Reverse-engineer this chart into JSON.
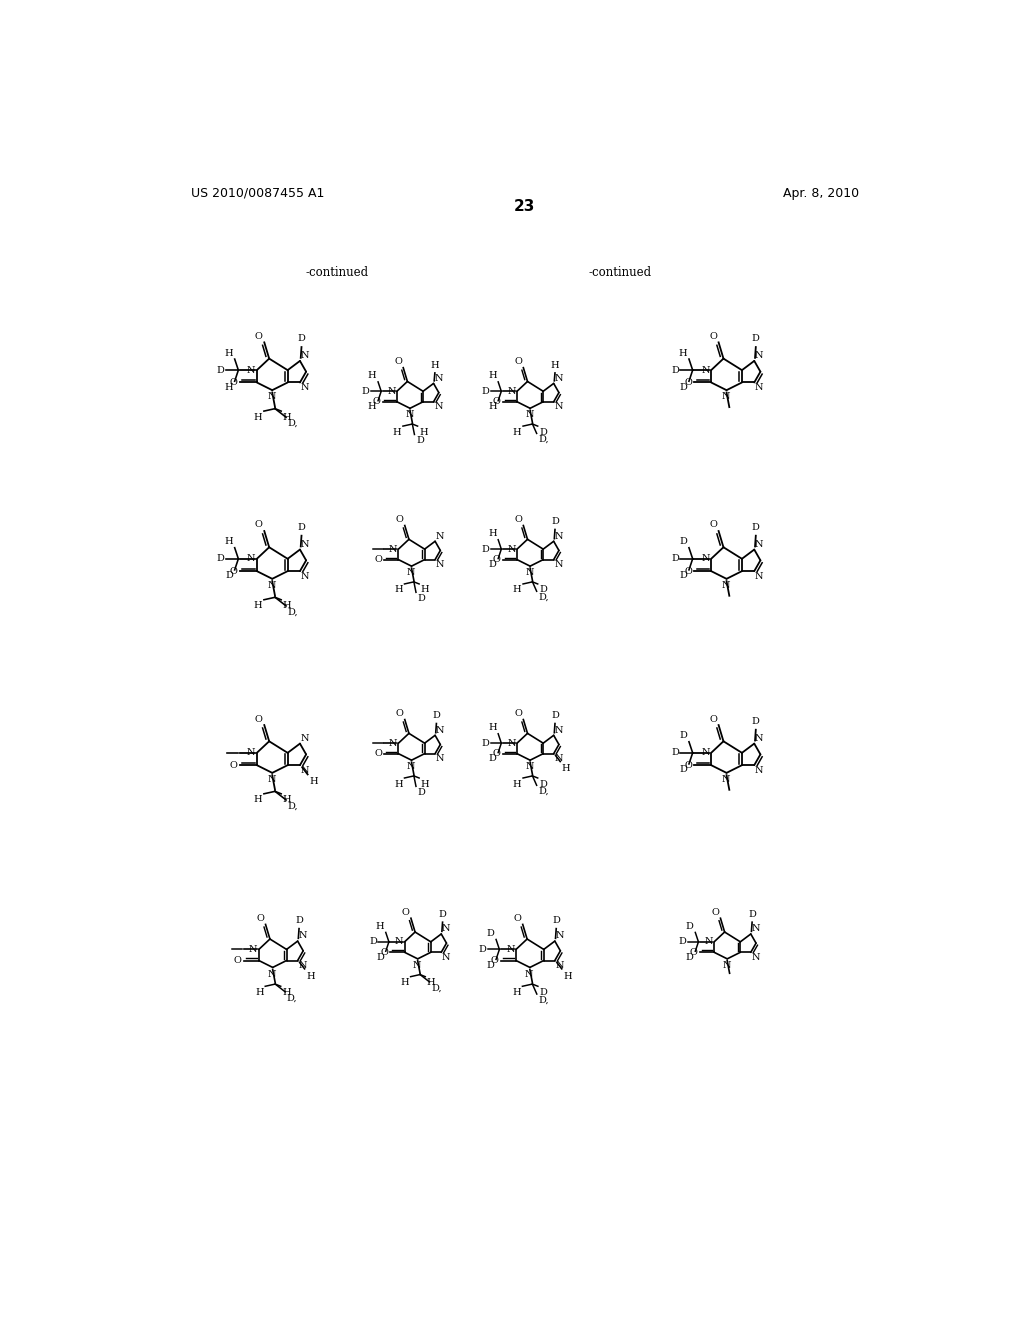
{
  "page_number": "23",
  "patent_number": "US 2010/0087455 A1",
  "patent_date": "Apr. 8, 2010",
  "background_color": "#ffffff"
}
